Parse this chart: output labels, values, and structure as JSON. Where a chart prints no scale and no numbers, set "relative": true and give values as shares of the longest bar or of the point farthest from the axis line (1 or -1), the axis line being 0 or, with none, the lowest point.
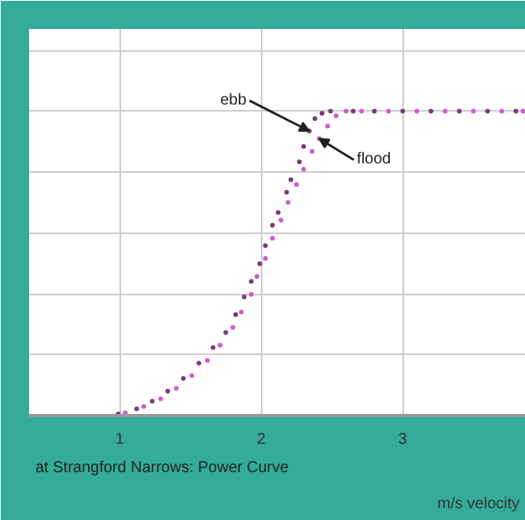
{
  "chart_data": {
    "type": "scatter",
    "relative": true,
    "xlim": [
      0.36,
      3.87
    ],
    "xticks": [
      1,
      2,
      3
    ],
    "xlabel": "m/s velocity",
    "grid": true,
    "marker": "circle",
    "annotations": [
      "at Strangford Narrows: Power Curve"
    ],
    "series": [
      {
        "name": "ebb",
        "color": "#7a3a7a",
        "x": [
          0.99,
          1.12,
          1.23,
          1.34,
          1.45,
          1.56,
          1.66,
          1.75,
          1.82,
          1.88,
          1.93,
          1.99,
          2.03,
          2.08,
          2.12,
          2.18,
          2.21,
          2.27,
          2.3,
          2.34,
          2.38,
          2.43,
          2.49,
          2.65,
          2.8,
          3.0,
          3.2,
          3.4,
          3.6,
          3.8
        ],
        "values": [
          0.005,
          0.022,
          0.047,
          0.08,
          0.122,
          0.172,
          0.223,
          0.273,
          0.332,
          0.39,
          0.441,
          0.499,
          0.558,
          0.625,
          0.667,
          0.734,
          0.775,
          0.834,
          0.884,
          0.935,
          0.976,
          0.993,
          1.0,
          1.0,
          1.0,
          1.0,
          1.0,
          1.0,
          1.0,
          1.0
        ]
      },
      {
        "name": "flood",
        "color": "#d05ad0",
        "x": [
          1.04,
          1.17,
          1.29,
          1.4,
          1.51,
          1.62,
          1.71,
          1.8,
          1.86,
          1.93,
          1.97,
          2.03,
          2.08,
          2.14,
          2.19,
          2.25,
          2.3,
          2.36,
          2.41,
          2.47,
          2.53,
          2.6,
          2.71,
          2.9,
          3.1,
          3.3,
          3.5,
          3.7,
          3.85
        ],
        "values": [
          0.009,
          0.03,
          0.055,
          0.089,
          0.131,
          0.181,
          0.231,
          0.29,
          0.34,
          0.398,
          0.457,
          0.516,
          0.583,
          0.642,
          0.7,
          0.759,
          0.809,
          0.868,
          0.91,
          0.951,
          0.985,
          1.0,
          1.0,
          1.0,
          1.0,
          1.0,
          1.0,
          1.0,
          1.0
        ]
      }
    ]
  }
}
